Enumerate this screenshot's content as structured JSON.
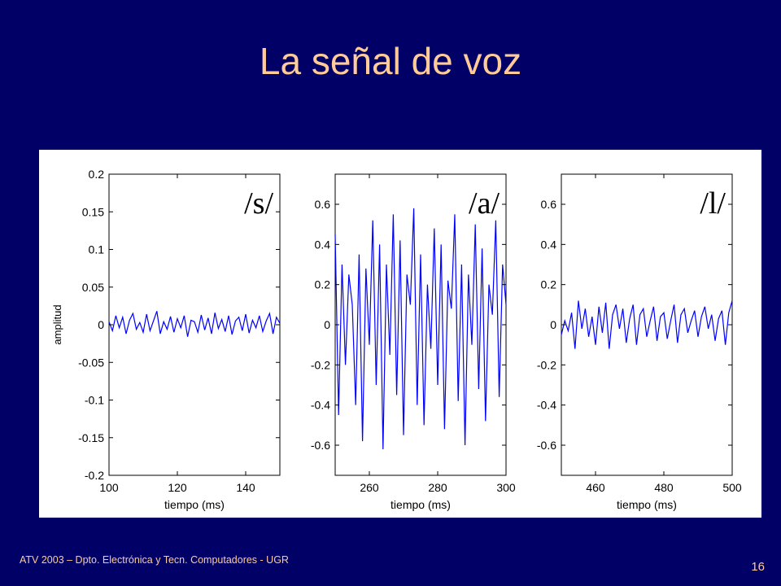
{
  "slide": {
    "title": "La señal de voz",
    "footer": "ATV 2003 – Dpto. Electrónica y Tecn. Computadores - UGR",
    "page_number": "16"
  },
  "colors": {
    "background": "#000066",
    "title_text": "#ffcc99",
    "signal": "#0000ff"
  },
  "chart_data": [
    {
      "type": "line",
      "phoneme_label": "/s/",
      "xlabel": "tiempo (ms)",
      "ylabel": "amplitud",
      "xlim": [
        100,
        150
      ],
      "ylim": [
        -0.2,
        0.2
      ],
      "xticks": [
        100,
        120,
        140
      ],
      "yticks": [
        0.2,
        0.15,
        0.1,
        0.05,
        0,
        -0.05,
        -0.1,
        -0.15,
        -0.2
      ],
      "ytick_labels": [
        "0.2",
        "0.15",
        "0.1",
        "0.05",
        "0",
        "-0.05",
        "-0.1",
        "-0.15",
        "-0.2"
      ],
      "grid": false,
      "series": [
        {
          "x": [
            100,
            101,
            102,
            103,
            104,
            105,
            106,
            107,
            108,
            109,
            110,
            111,
            112,
            113,
            114,
            115,
            116,
            117,
            118,
            119,
            120,
            121,
            122,
            123,
            124,
            125,
            126,
            127,
            128,
            129,
            130,
            131,
            132,
            133,
            134,
            135,
            136,
            137,
            138,
            139,
            140,
            141,
            142,
            143,
            144,
            145,
            146,
            147,
            148,
            149,
            150
          ],
          "values": [
            0.004,
            -0.008,
            0.012,
            -0.004,
            0.01,
            -0.012,
            0.006,
            0.015,
            -0.006,
            0.003,
            -0.01,
            0.014,
            -0.008,
            0.005,
            0.018,
            -0.012,
            0.004,
            -0.006,
            0.011,
            -0.01,
            0.008,
            -0.004,
            0.012,
            -0.016,
            0.006,
            0.004,
            -0.01,
            0.013,
            -0.007,
            0.009,
            -0.012,
            0.016,
            -0.005,
            0.007,
            -0.009,
            0.012,
            -0.013,
            0.005,
            0.01,
            -0.008,
            0.014,
            -0.011,
            0.006,
            -0.004,
            0.012,
            -0.009,
            0.005,
            0.015,
            -0.012,
            0.01,
            0.002
          ]
        }
      ]
    },
    {
      "type": "line",
      "phoneme_label": "/a/",
      "xlabel": "tiempo (ms)",
      "ylabel": "",
      "xlim": [
        250,
        300
      ],
      "ylim": [
        -0.75,
        0.75
      ],
      "xticks": [
        260,
        280,
        300
      ],
      "yticks": [
        0.6,
        0.4,
        0.2,
        0,
        -0.2,
        -0.4,
        -0.6
      ],
      "ytick_labels": [
        "0.6",
        "0.4",
        "0.2",
        "0",
        "-0.2",
        "-0.4",
        "-0.6"
      ],
      "grid": false,
      "series": [
        {
          "x": [
            250,
            251,
            252,
            253,
            254,
            255,
            256,
            257,
            258,
            259,
            260,
            261,
            262,
            263,
            264,
            265,
            266,
            267,
            268,
            269,
            270,
            271,
            272,
            273,
            274,
            275,
            276,
            277,
            278,
            279,
            280,
            281,
            282,
            283,
            284,
            285,
            286,
            287,
            288,
            289,
            290,
            291,
            292,
            293,
            294,
            295,
            296,
            297,
            298,
            299,
            300
          ],
          "values": [
            0.45,
            -0.45,
            0.3,
            -0.2,
            0.25,
            0.1,
            -0.4,
            0.35,
            -0.58,
            0.28,
            -0.1,
            0.52,
            -0.3,
            0.4,
            -0.62,
            0.3,
            -0.15,
            0.55,
            -0.35,
            0.42,
            -0.55,
            0.25,
            0.1,
            0.58,
            -0.4,
            0.35,
            -0.5,
            0.2,
            -0.12,
            0.48,
            -0.3,
            0.4,
            -0.52,
            0.22,
            0.08,
            0.55,
            -0.38,
            0.3,
            -0.6,
            0.25,
            -0.1,
            0.5,
            -0.32,
            0.38,
            -0.48,
            0.2,
            0.05,
            0.52,
            -0.36,
            0.3,
            0.1
          ]
        }
      ]
    },
    {
      "type": "line",
      "phoneme_label": "/l/",
      "xlabel": "tiempo (ms)",
      "ylabel": "",
      "xlim": [
        450,
        500
      ],
      "ylim": [
        -0.75,
        0.75
      ],
      "xticks": [
        460,
        480,
        500
      ],
      "yticks": [
        0.6,
        0.4,
        0.2,
        0,
        -0.2,
        -0.4,
        -0.6
      ],
      "ytick_labels": [
        "0.6",
        "0.4",
        "0.2",
        "0",
        "-0.2",
        "-0.4",
        "-0.6"
      ],
      "grid": false,
      "series": [
        {
          "x": [
            450,
            451,
            452,
            453,
            454,
            455,
            456,
            457,
            458,
            459,
            460,
            461,
            462,
            463,
            464,
            465,
            466,
            467,
            468,
            469,
            470,
            471,
            472,
            473,
            474,
            475,
            476,
            477,
            478,
            479,
            480,
            481,
            482,
            483,
            484,
            485,
            486,
            487,
            488,
            489,
            490,
            491,
            492,
            493,
            494,
            495,
            496,
            497,
            498,
            499,
            500
          ],
          "values": [
            -0.05,
            0.02,
            -0.03,
            0.06,
            -0.12,
            0.12,
            -0.02,
            0.08,
            -0.06,
            0.04,
            -0.1,
            0.09,
            -0.04,
            0.11,
            -0.12,
            0.05,
            0.1,
            -0.02,
            0.08,
            -0.09,
            0.03,
            0.1,
            -0.1,
            0.05,
            0.08,
            -0.06,
            0.02,
            0.09,
            -0.08,
            0.04,
            0.06,
            -0.07,
            0.02,
            0.1,
            -0.09,
            0.05,
            0.08,
            -0.04,
            0.02,
            0.07,
            -0.06,
            0.04,
            0.09,
            -0.02,
            0.05,
            -0.08,
            0.03,
            0.07,
            -0.1,
            0.06,
            0.12
          ]
        }
      ]
    }
  ]
}
